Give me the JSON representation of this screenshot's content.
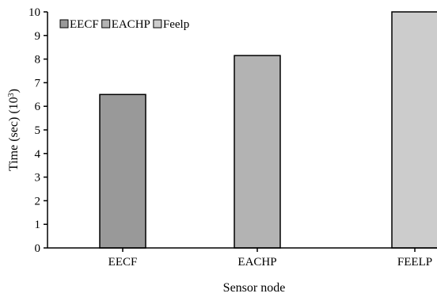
{
  "chart_data": {
    "type": "bar",
    "categories": [
      "EECF",
      "EACHP",
      "FEELP"
    ],
    "series": [
      {
        "name": "EECF",
        "values": [
          6.5,
          null,
          null
        ],
        "color": "#999999"
      },
      {
        "name": "EACHP",
        "values": [
          null,
          8.15,
          null
        ],
        "color": "#b3b3b3"
      },
      {
        "name": "Feelp",
        "values": [
          null,
          null,
          10.0
        ],
        "color": "#cccccc"
      }
    ],
    "xlabel": "Sensor node",
    "ylabel": "Time (sec) (10",
    "ylabel_superscript": "3",
    "ylabel_suffix": ")",
    "ylim": [
      0,
      10
    ],
    "yticks": [
      "0",
      "1",
      "2",
      "3",
      "4",
      "5",
      "6",
      "7",
      "8",
      "9",
      "10"
    ],
    "grid": false,
    "legend_position": "top-left"
  }
}
